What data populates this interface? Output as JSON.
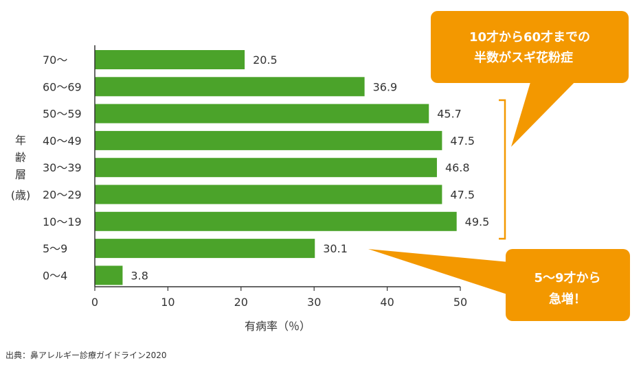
{
  "chart_data": {
    "type": "bar",
    "orientation": "horizontal",
    "categories": [
      "70〜",
      "60〜69",
      "50〜59",
      "40〜49",
      "30〜39",
      "20〜29",
      "10〜19",
      "5〜9",
      "0〜4"
    ],
    "values": [
      20.5,
      36.9,
      45.7,
      47.5,
      46.8,
      47.5,
      49.5,
      30.1,
      3.8
    ],
    "value_labels": [
      "20.5",
      "36.9",
      "45.7",
      "47.5",
      "46.8",
      "47.5",
      "49.5",
      "30.1",
      "3.8"
    ],
    "xticks": [
      0,
      10,
      20,
      30,
      40,
      50
    ],
    "xlim": [
      0,
      50
    ],
    "xlabel": "有病率（％）",
    "ylabel_lines": [
      "年",
      "齢",
      "層",
      "(歳)"
    ],
    "bar_color": "#4ba32a",
    "grid": false
  },
  "callouts": {
    "top": {
      "lines": [
        "10才から60才までの",
        "半数がスギ花粉症"
      ],
      "color": "#f39800"
    },
    "bottom": {
      "lines": [
        "5〜9才から",
        "急増！"
      ],
      "color": "#f39800"
    }
  },
  "bracket_color": "#f39800",
  "source": "出典：鼻アレルギー診療ガイドライン2020"
}
